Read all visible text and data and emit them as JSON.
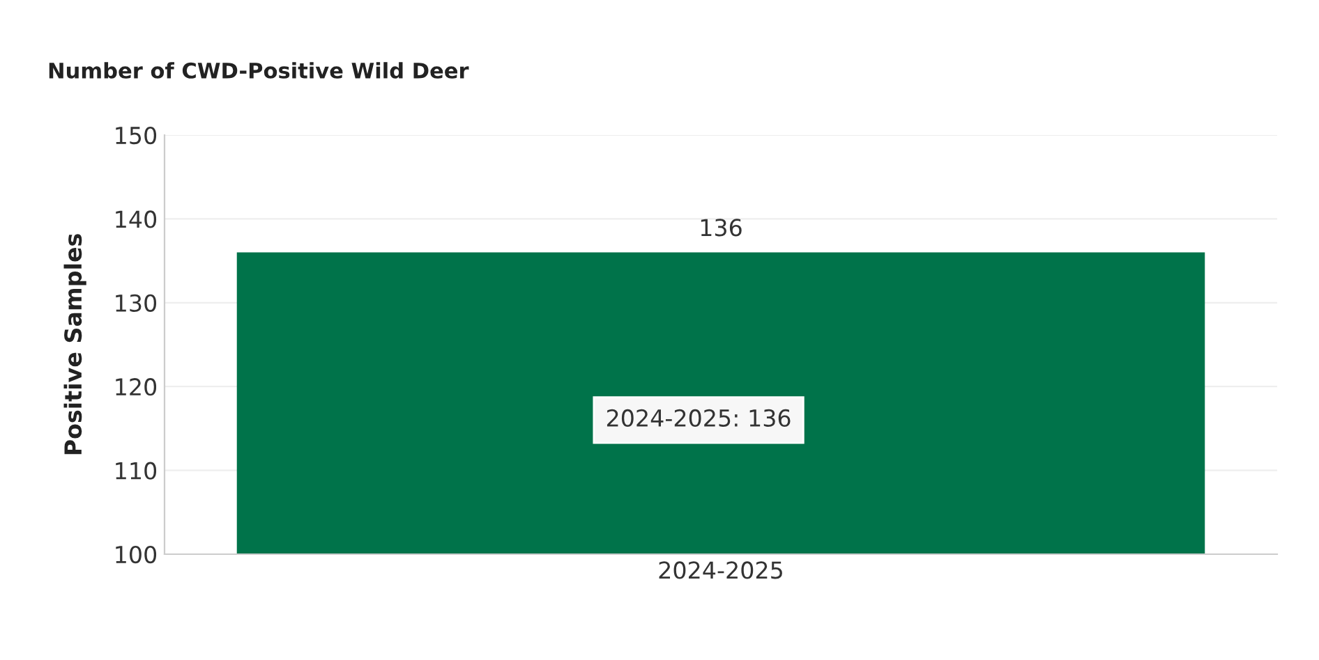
{
  "chart_data": {
    "type": "bar",
    "title": "Number of CWD-Positive Wild Deer",
    "ylabel": "Positive Samples",
    "categories": [
      "2024-2025"
    ],
    "values": [
      136
    ],
    "color": "#00734a",
    "ylim": [
      100,
      150
    ],
    "yticks": [
      100,
      110,
      120,
      130,
      140,
      150
    ],
    "grid": "y",
    "data_labels": true,
    "annotations": [
      "2024-2025: 136"
    ]
  }
}
